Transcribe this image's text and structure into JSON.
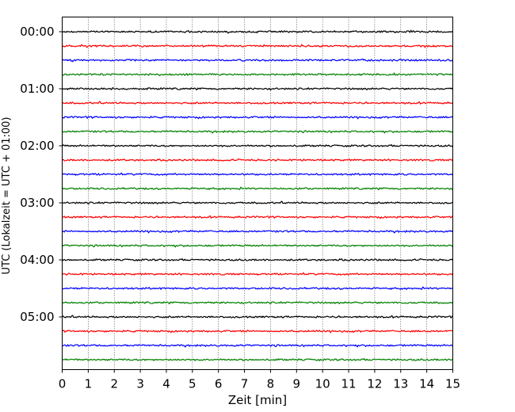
{
  "chart_data": {
    "type": "line",
    "title": "",
    "xlabel": "Zeit  [min]",
    "ylabel": "UTC (Lokalzeit = UTC + 01:00)",
    "xlim": [
      0,
      15
    ],
    "x_ticks": [
      "0",
      "1",
      "2",
      "3",
      "4",
      "5",
      "6",
      "7",
      "8",
      "9",
      "10",
      "11",
      "12",
      "13",
      "14",
      "15"
    ],
    "y_ticks": [
      "00:00",
      "01:00",
      "02:00",
      "03:00",
      "04:00",
      "05:00"
    ],
    "trace_interval_minutes": 15,
    "trace_count": 24,
    "trace_colors": [
      "#000000",
      "#ff0000",
      "#0000ff",
      "#008000"
    ],
    "grid": {
      "vertical_dotted": true
    }
  }
}
